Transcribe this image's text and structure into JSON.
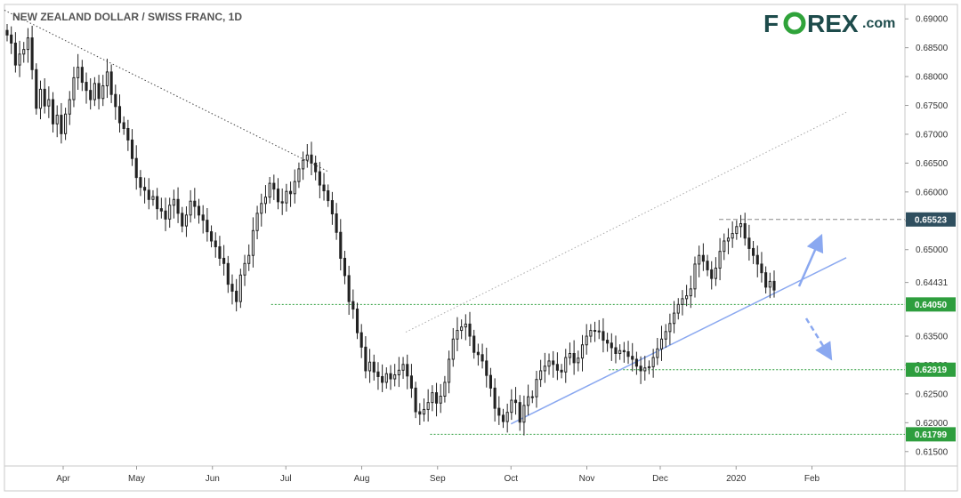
{
  "chart_data": {
    "type": "candlestick",
    "title": "NEW ZEALAND DOLLAR / SWISS FRANC, 1D",
    "x_tick_labels": [
      "Apr",
      "May",
      "Jun",
      "Jul",
      "Aug",
      "Sep",
      "Oct",
      "Nov",
      "Dec",
      "2020",
      "Feb"
    ],
    "y_tick_labels": [
      "0.69000",
      "0.68500",
      "0.68000",
      "0.67500",
      "0.67000",
      "0.66500",
      "0.66000",
      "0.65500",
      "0.65000",
      "0.64431",
      "0.63500",
      "0.63000",
      "0.62500",
      "0.62000",
      "0.61500"
    ],
    "ylim": [
      0.6125,
      0.6925
    ],
    "highlighted_levels": [
      {
        "label": "0.65523",
        "value": 0.65523,
        "color": "#2f4f5f",
        "line_style": "dashed"
      },
      {
        "label": "0.64050",
        "value": 0.6405,
        "color": "#2e9e3e",
        "line_style": "dotted"
      },
      {
        "label": "0.62919",
        "value": 0.62919,
        "color": "#2e9e3e",
        "line_style": "dotted"
      },
      {
        "label": "0.61799",
        "value": 0.61799,
        "color": "#2e9e3e",
        "line_style": "dotted"
      }
    ],
    "trendlines": [
      {
        "name": "downtrend-resistance",
        "from": [
          "2019-03-08",
          0.6915
        ],
        "to": [
          "2019-07-18",
          0.6636
        ],
        "color": "#444444",
        "style": "dotted"
      },
      {
        "name": "uptrend-support",
        "from": [
          "2019-10-01",
          0.6198
        ],
        "to": [
          "2020-02-15",
          0.6486
        ],
        "color": "#8aa8f0",
        "style": "solid"
      },
      {
        "name": "upper-channel",
        "from": [
          "2019-08-19",
          0.6357
        ],
        "to": [
          "2020-02-15",
          0.6738
        ],
        "color": "#aaaaaa",
        "style": "dotted"
      }
    ],
    "arrows": [
      {
        "name": "bullish-scenario",
        "direction": "up",
        "color": "#8aa8f0",
        "style": "solid"
      },
      {
        "name": "bearish-scenario",
        "direction": "down",
        "color": "#8aa8f0",
        "style": "dashed"
      }
    ],
    "colors": {
      "candle": "#222222",
      "up_body": "#ffffff",
      "down_body": "#222222"
    },
    "x_start": "2019-03-08",
    "closes": [
      0.6872,
      0.6858,
      0.682,
      0.6839,
      0.6847,
      0.6867,
      0.6812,
      0.6745,
      0.6778,
      0.6749,
      0.676,
      0.6718,
      0.6733,
      0.6701,
      0.6735,
      0.676,
      0.6798,
      0.6816,
      0.679,
      0.6776,
      0.676,
      0.6788,
      0.6762,
      0.6784,
      0.6808,
      0.6769,
      0.6748,
      0.672,
      0.671,
      0.669,
      0.6658,
      0.6625,
      0.6608,
      0.6603,
      0.6587,
      0.6592,
      0.6571,
      0.6567,
      0.6553,
      0.6577,
      0.6587,
      0.6563,
      0.6541,
      0.656,
      0.6584,
      0.6575,
      0.656,
      0.6551,
      0.6531,
      0.6515,
      0.6505,
      0.6485,
      0.6476,
      0.644,
      0.6428,
      0.641,
      0.6456,
      0.6476,
      0.649,
      0.6533,
      0.6563,
      0.658,
      0.6591,
      0.6615,
      0.6605,
      0.6583,
      0.6581,
      0.6601,
      0.6597,
      0.6618,
      0.664,
      0.6655,
      0.6664,
      0.665,
      0.6635,
      0.6612,
      0.6602,
      0.6585,
      0.6562,
      0.653,
      0.6485,
      0.6455,
      0.641,
      0.6397,
      0.6356,
      0.6331,
      0.629,
      0.6305,
      0.6288,
      0.628,
      0.627,
      0.6285,
      0.6276,
      0.6283,
      0.6291,
      0.6301,
      0.6281,
      0.626,
      0.6219,
      0.6215,
      0.6223,
      0.6235,
      0.6252,
      0.6234,
      0.6246,
      0.627,
      0.631,
      0.6345,
      0.636,
      0.6366,
      0.6371,
      0.635,
      0.6322,
      0.6318,
      0.6307,
      0.6282,
      0.626,
      0.6225,
      0.6213,
      0.6202,
      0.6218,
      0.6239,
      0.6235,
      0.6201,
      0.623,
      0.6245,
      0.6245,
      0.6275,
      0.629,
      0.6298,
      0.6307,
      0.6301,
      0.6291,
      0.6288,
      0.6313,
      0.632,
      0.6304,
      0.6312,
      0.6335,
      0.635,
      0.636,
      0.6359,
      0.6358,
      0.6343,
      0.6338,
      0.633,
      0.632,
      0.6325,
      0.6323,
      0.6315,
      0.631,
      0.6298,
      0.629,
      0.6295,
      0.6297,
      0.6313,
      0.6328,
      0.6345,
      0.6358,
      0.6372,
      0.639,
      0.6405,
      0.6415,
      0.642,
      0.6432,
      0.6475,
      0.649,
      0.648,
      0.6465,
      0.645,
      0.6468,
      0.6497,
      0.6515,
      0.652,
      0.6528,
      0.654,
      0.6545,
      0.652,
      0.6502,
      0.649,
      0.6475,
      0.646,
      0.6435,
      0.6445,
      0.643
    ]
  }
}
